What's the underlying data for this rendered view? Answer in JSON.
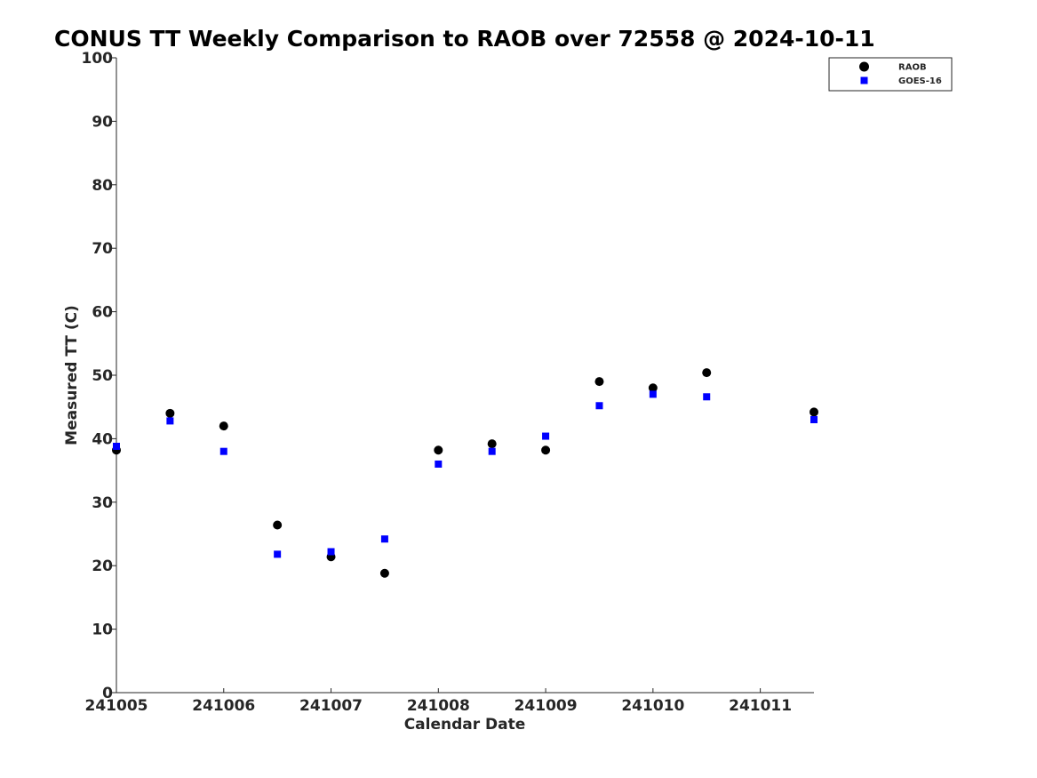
{
  "chart_data": {
    "type": "scatter",
    "title": "CONUS TT Weekly Comparison to RAOB over 72558 @ 2024-10-11",
    "xlabel": "Calendar Date",
    "ylabel": "Measured TT (C)",
    "xlim": [
      241005,
      241011.5
    ],
    "ylim": [
      0,
      100
    ],
    "x_ticks": [
      {
        "value": 241005,
        "label": "241005"
      },
      {
        "value": 241006,
        "label": "241006"
      },
      {
        "value": 241007,
        "label": "241007"
      },
      {
        "value": 241008,
        "label": "241008"
      },
      {
        "value": 241009,
        "label": "241009"
      },
      {
        "value": 241010,
        "label": "241010"
      },
      {
        "value": 241011,
        "label": "241011"
      }
    ],
    "y_ticks": [
      0,
      10,
      20,
      30,
      40,
      50,
      60,
      70,
      80,
      90,
      100
    ],
    "grid": false,
    "legend_position": "top-right",
    "series": [
      {
        "name": "RAOB",
        "marker": "circle",
        "color": "#000000",
        "x": [
          241005,
          241005.5,
          241006,
          241006.5,
          241007,
          241007.5,
          241008,
          241008.5,
          241009,
          241009.5,
          241010,
          241010.5,
          241011.5
        ],
        "y": [
          38.2,
          44.0,
          42.0,
          26.4,
          21.4,
          18.8,
          38.2,
          39.2,
          38.2,
          49.0,
          48.0,
          50.4,
          44.2
        ]
      },
      {
        "name": "GOES-16",
        "marker": "square",
        "color": "#0000ff",
        "x": [
          241005,
          241005.5,
          241006,
          241006.5,
          241007,
          241007.5,
          241008,
          241008.5,
          241009,
          241009.5,
          241010,
          241010.5,
          241011.5
        ],
        "y": [
          38.8,
          42.8,
          38.0,
          21.8,
          22.2,
          24.2,
          36.0,
          38.0,
          40.4,
          45.2,
          47.0,
          46.6,
          43.0
        ]
      }
    ]
  }
}
